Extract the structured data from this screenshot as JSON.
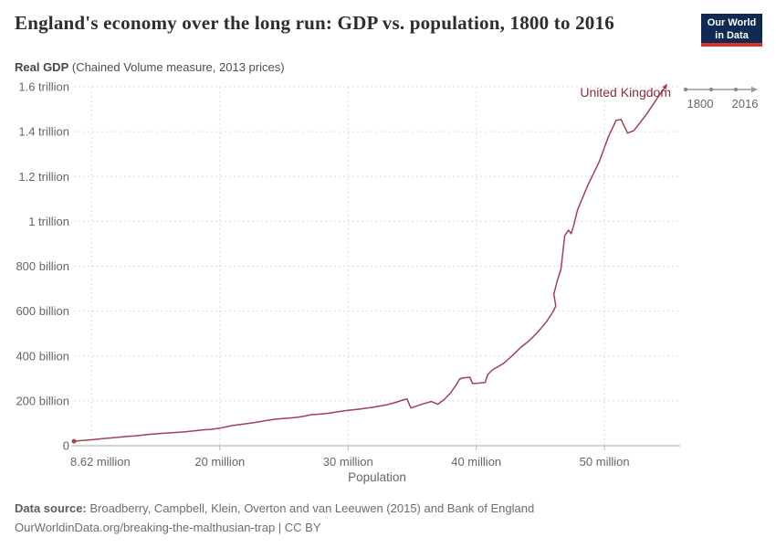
{
  "header": {
    "title": "England's economy over the long run: GDP vs. population, 1800 to 2016",
    "logo": {
      "line1": "Our World",
      "line2": "in Data",
      "bg_color": "#102a54",
      "accent_color": "#d7352c"
    }
  },
  "subtitle": {
    "bold": "Real GDP",
    "rest": " (Chained Volume measure, 2013 prices)"
  },
  "timeline": {
    "start_label": "1800",
    "end_label": "2016"
  },
  "footer": {
    "source_label": "Data source:",
    "source_text": " Broadberry, Campbell, Klein, Overton and van Leeuwen (2015) and Bank of England",
    "link_text": "OurWorldinData.org/breaking-the-malthusian-trap",
    "license_text": " | CC BY"
  },
  "chart_data": {
    "type": "line",
    "title": "England's economy over the long run: GDP vs. population, 1800 to 2016",
    "xlabel": "Population",
    "ylabel": "Real GDP (Chained Volume measure, 2013 prices)",
    "grid": "dashed",
    "x_axis": {
      "min": 8.62,
      "max": 55.9,
      "unit": "million people",
      "gridline_values": [
        10,
        20,
        30,
        40,
        50
      ],
      "tick_mark_values": [
        20,
        30,
        40,
        50
      ],
      "ticks": [
        {
          "value": 8.62,
          "label": "8.62 million",
          "anchor": "start"
        },
        {
          "value": 20,
          "label": "20 million",
          "anchor": "middle"
        },
        {
          "value": 30,
          "label": "30 million",
          "anchor": "middle"
        },
        {
          "value": 40,
          "label": "40 million",
          "anchor": "middle"
        },
        {
          "value": 50,
          "label": "50 million",
          "anchor": "middle"
        }
      ]
    },
    "y_axis": {
      "min": 0,
      "max": 1600,
      "unit": "GBP, billions, 2013 prices",
      "ticks": [
        {
          "value": 0,
          "label": "0"
        },
        {
          "value": 200,
          "label": "200 billion"
        },
        {
          "value": 400,
          "label": "400 billion"
        },
        {
          "value": 600,
          "label": "600 billion"
        },
        {
          "value": 800,
          "label": "800 billion"
        },
        {
          "value": 1000,
          "label": "1 trillion"
        },
        {
          "value": 1200,
          "label": "1.2 trillion"
        },
        {
          "value": 1400,
          "label": "1.4 trillion"
        },
        {
          "value": 1600,
          "label": "1.6 trillion"
        }
      ]
    },
    "series": [
      {
        "name": "United Kingdom",
        "color": "#a2424f",
        "label_color": "#8c2f3b",
        "points_format": "[population_millions, real_gdp_billions]",
        "points": [
          [
            8.62,
            20
          ],
          [
            9.2,
            23
          ],
          [
            9.9,
            26
          ],
          [
            10.6,
            30
          ],
          [
            11.4,
            34
          ],
          [
            12.1,
            38
          ],
          [
            12.7,
            41
          ],
          [
            13.4,
            44
          ],
          [
            14.2,
            49
          ],
          [
            15.0,
            53
          ],
          [
            16.0,
            57
          ],
          [
            17.1,
            61
          ],
          [
            18.0,
            66
          ],
          [
            18.6,
            70
          ],
          [
            19.3,
            73
          ],
          [
            20.0,
            78
          ],
          [
            20.9,
            89
          ],
          [
            21.8,
            96
          ],
          [
            22.6,
            102
          ],
          [
            23.2,
            108
          ],
          [
            23.7,
            113
          ],
          [
            24.3,
            118
          ],
          [
            24.9,
            121
          ],
          [
            25.6,
            124
          ],
          [
            26.1,
            127
          ],
          [
            26.6,
            132
          ],
          [
            27.1,
            138
          ],
          [
            27.8,
            141
          ],
          [
            28.4,
            144
          ],
          [
            29.2,
            151
          ],
          [
            30.0,
            158
          ],
          [
            31.0,
            164
          ],
          [
            32.0,
            172
          ],
          [
            33.0,
            182
          ],
          [
            33.7,
            193
          ],
          [
            34.3,
            204
          ],
          [
            34.6,
            208
          ],
          [
            34.9,
            168
          ],
          [
            35.3,
            176
          ],
          [
            35.7,
            184
          ],
          [
            36.2,
            192
          ],
          [
            36.5,
            197
          ],
          [
            37.0,
            185
          ],
          [
            37.5,
            206
          ],
          [
            38.0,
            236
          ],
          [
            38.4,
            268
          ],
          [
            38.7,
            297
          ],
          [
            39.0,
            303
          ],
          [
            39.5,
            305
          ],
          [
            39.7,
            278
          ],
          [
            40.2,
            279
          ],
          [
            40.7,
            282
          ],
          [
            40.9,
            318
          ],
          [
            41.3,
            340
          ],
          [
            41.7,
            352
          ],
          [
            42.2,
            370
          ],
          [
            42.6,
            391
          ],
          [
            43.0,
            412
          ],
          [
            43.5,
            440
          ],
          [
            44.0,
            462
          ],
          [
            44.5,
            489
          ],
          [
            45.0,
            520
          ],
          [
            45.5,
            554
          ],
          [
            46.0,
            599
          ],
          [
            46.2,
            623
          ],
          [
            46.05,
            676
          ],
          [
            46.3,
            733
          ],
          [
            46.6,
            786
          ],
          [
            46.9,
            937
          ],
          [
            47.2,
            961
          ],
          [
            47.4,
            945
          ],
          [
            47.6,
            982
          ],
          [
            47.9,
            1051
          ],
          [
            48.7,
            1161
          ],
          [
            49.6,
            1267
          ],
          [
            50.3,
            1377
          ],
          [
            50.9,
            1450
          ],
          [
            51.3,
            1454
          ],
          [
            51.8,
            1393
          ],
          [
            52.3,
            1405
          ],
          [
            53.3,
            1479
          ],
          [
            54.1,
            1548
          ],
          [
            54.7,
            1597
          ]
        ]
      }
    ]
  }
}
